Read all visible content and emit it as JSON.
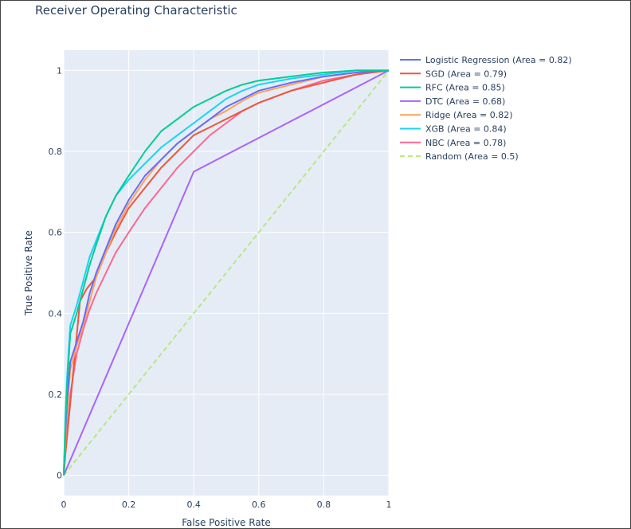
{
  "chart_data": {
    "type": "line",
    "title": "Receiver Operating Characteristic",
    "xlabel": "False Positive Rate",
    "ylabel": "True Positive Rate",
    "xlim": [
      0,
      1
    ],
    "ylim": [
      -0.05,
      1.05
    ],
    "grid": true,
    "legend_position": "right",
    "x_ticks": [
      {
        "value": 0,
        "label": "0"
      },
      {
        "value": 0.2,
        "label": "0.2"
      },
      {
        "value": 0.4,
        "label": "0.4"
      },
      {
        "value": 0.6,
        "label": "0.6"
      },
      {
        "value": 0.8,
        "label": "0.8"
      },
      {
        "value": 1,
        "label": "1"
      }
    ],
    "y_ticks": [
      {
        "value": 0,
        "label": "0"
      },
      {
        "value": 0.2,
        "label": "0.2"
      },
      {
        "value": 0.4,
        "label": "0.4"
      },
      {
        "value": 0.6,
        "label": "0.6"
      },
      {
        "value": 0.8,
        "label": "0.8"
      },
      {
        "value": 1,
        "label": "1"
      }
    ],
    "series": [
      {
        "name": "Logistic Regression (Area = 0.82)",
        "color": "#636efa",
        "dash": false,
        "x": [
          0,
          0.005,
          0.01,
          0.02,
          0.04,
          0.06,
          0.08,
          0.1,
          0.13,
          0.16,
          0.2,
          0.25,
          0.3,
          0.35,
          0.4,
          0.45,
          0.5,
          0.55,
          0.6,
          0.7,
          0.8,
          0.9,
          1
        ],
        "y": [
          0,
          0.1,
          0.18,
          0.28,
          0.33,
          0.38,
          0.45,
          0.5,
          0.56,
          0.62,
          0.68,
          0.74,
          0.78,
          0.82,
          0.85,
          0.88,
          0.91,
          0.93,
          0.95,
          0.97,
          0.985,
          0.995,
          1
        ]
      },
      {
        "name": "SGD (Area = 0.79)",
        "color": "#ef553b",
        "dash": false,
        "x": [
          0,
          0.005,
          0.05,
          0.07,
          0.1,
          0.13,
          0.16,
          0.2,
          0.25,
          0.3,
          0.35,
          0.4,
          0.45,
          0.5,
          0.55,
          0.6,
          0.7,
          0.8,
          0.9,
          1
        ],
        "y": [
          0,
          0.05,
          0.43,
          0.46,
          0.49,
          0.55,
          0.6,
          0.66,
          0.71,
          0.76,
          0.8,
          0.84,
          0.86,
          0.88,
          0.9,
          0.92,
          0.95,
          0.97,
          0.99,
          1
        ]
      },
      {
        "name": "RFC (Area = 0.85)",
        "color": "#00cc96",
        "dash": false,
        "x": [
          0,
          0.005,
          0.01,
          0.02,
          0.04,
          0.06,
          0.08,
          0.1,
          0.13,
          0.16,
          0.2,
          0.25,
          0.3,
          0.35,
          0.4,
          0.45,
          0.5,
          0.55,
          0.6,
          0.7,
          0.8,
          0.9,
          1
        ],
        "y": [
          0,
          0.12,
          0.22,
          0.35,
          0.4,
          0.46,
          0.52,
          0.57,
          0.64,
          0.69,
          0.74,
          0.8,
          0.85,
          0.88,
          0.91,
          0.93,
          0.95,
          0.965,
          0.975,
          0.985,
          0.995,
          1,
          1
        ]
      },
      {
        "name": "DTC (Area = 0.68)",
        "color": "#ab63fa",
        "dash": false,
        "x": [
          0,
          0.4,
          1
        ],
        "y": [
          0,
          0.75,
          1
        ]
      },
      {
        "name": "Ridge (Area = 0.82)",
        "color": "#ffa15a",
        "dash": false,
        "x": [
          0,
          0.005,
          0.01,
          0.02,
          0.04,
          0.06,
          0.08,
          0.1,
          0.13,
          0.16,
          0.2,
          0.25,
          0.3,
          0.35,
          0.4,
          0.45,
          0.5,
          0.55,
          0.6,
          0.7,
          0.8,
          0.9,
          1
        ],
        "y": [
          0,
          0.08,
          0.16,
          0.26,
          0.32,
          0.37,
          0.43,
          0.49,
          0.55,
          0.61,
          0.67,
          0.73,
          0.78,
          0.82,
          0.85,
          0.88,
          0.9,
          0.925,
          0.945,
          0.965,
          0.985,
          0.995,
          1
        ]
      },
      {
        "name": "XGB (Area = 0.84)",
        "color": "#19d3f3",
        "dash": false,
        "x": [
          0,
          0.005,
          0.01,
          0.02,
          0.04,
          0.06,
          0.08,
          0.1,
          0.13,
          0.16,
          0.2,
          0.25,
          0.3,
          0.35,
          0.4,
          0.45,
          0.5,
          0.55,
          0.6,
          0.7,
          0.8,
          0.9,
          1
        ],
        "y": [
          0,
          0.14,
          0.24,
          0.37,
          0.42,
          0.48,
          0.54,
          0.58,
          0.64,
          0.69,
          0.73,
          0.77,
          0.81,
          0.84,
          0.87,
          0.9,
          0.93,
          0.95,
          0.965,
          0.98,
          0.99,
          1,
          1
        ]
      },
      {
        "name": "NBC (Area = 0.78)",
        "color": "#ff6692",
        "dash": false,
        "x": [
          0,
          0.005,
          0.02,
          0.04,
          0.06,
          0.08,
          0.1,
          0.13,
          0.16,
          0.2,
          0.25,
          0.3,
          0.35,
          0.4,
          0.45,
          0.5,
          0.55,
          0.6,
          0.7,
          0.8,
          0.9,
          1
        ],
        "y": [
          0,
          0.06,
          0.2,
          0.3,
          0.36,
          0.41,
          0.45,
          0.5,
          0.55,
          0.6,
          0.66,
          0.71,
          0.76,
          0.8,
          0.84,
          0.87,
          0.9,
          0.92,
          0.95,
          0.975,
          0.99,
          1
        ]
      },
      {
        "name": "Random (Area = 0.5)",
        "color": "#b6e880",
        "dash": true,
        "x": [
          0,
          1
        ],
        "y": [
          0,
          1
        ]
      }
    ]
  }
}
